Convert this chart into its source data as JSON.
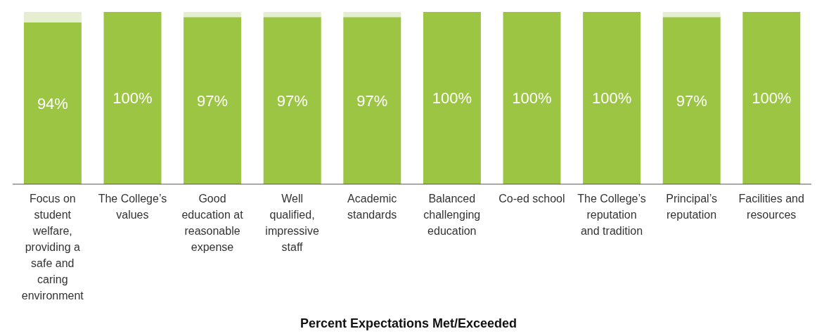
{
  "chart_data": {
    "type": "bar",
    "stacked": true,
    "xlabel": "Percent Expectations Met/Exceeded",
    "categories": [
      "Focus on student welfare, providing a safe and caring environment",
      "The College’s values",
      "Good education at reasonable expense",
      "Well qualified, impressive staff",
      "Academic standards",
      "Balanced challenging education",
      "Co-ed school",
      "The College’s reputation and tradition",
      "Principal’s reputation",
      "Facilities and resources"
    ],
    "series": [
      {
        "color": "#9dc544",
        "values": [
          94,
          100,
          97,
          97,
          97,
          100,
          100,
          100,
          97,
          100
        ],
        "value_labels": [
          "94%",
          "100%",
          "97%",
          "97%",
          "97%",
          "100%",
          "100%",
          "100%",
          "97%",
          "100%"
        ]
      },
      {
        "color": "#e6eed2",
        "values": [
          6,
          0,
          3,
          3,
          3,
          0,
          0,
          0,
          3,
          0
        ]
      }
    ]
  }
}
